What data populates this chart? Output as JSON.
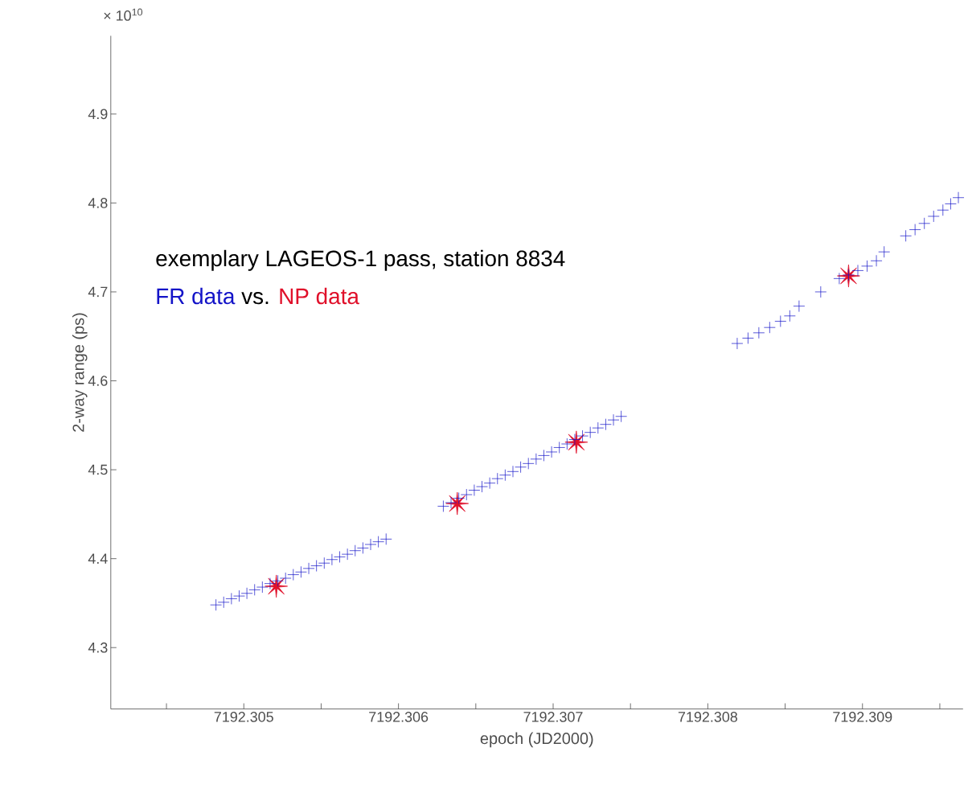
{
  "chart_data": {
    "type": "scatter",
    "title": "exemplary LAGEOS-1 pass, station 8834",
    "xlabel": "epoch (JD2000)",
    "ylabel": "2-way range (ps)",
    "annotations": [
      "× 10$^{10}$",
      "vs."
    ],
    "xlim": [
      7192.30414,
      7192.30965
    ],
    "ylim": [
      4.231,
      4.988
    ],
    "xticks": [
      {
        "value": 7192.3045,
        "label": null
      },
      7192.305,
      {
        "value": 7192.3055,
        "label": null
      },
      7192.306,
      {
        "value": 7192.3065,
        "label": null
      },
      7192.307,
      {
        "value": 7192.3075,
        "label": null
      },
      7192.308,
      {
        "value": 7192.3085,
        "label": null
      },
      7192.309,
      {
        "value": 7192.3095,
        "label": null
      }
    ],
    "yticks": [
      4.3,
      4.4,
      4.5,
      4.6,
      4.7,
      4.8,
      4.9
    ],
    "series": [
      {
        "name": "FR data",
        "color": "#1414c8",
        "marker": "cross",
        "x": [
          7192.30482,
          7192.30487,
          7192.30492,
          7192.30497,
          7192.30502,
          7192.30507,
          7192.30512,
          7192.30517,
          7192.30522,
          7192.30527,
          7192.30532,
          7192.30537,
          7192.30542,
          7192.30547,
          7192.30552,
          7192.30557,
          7192.30562,
          7192.30567,
          7192.30572,
          7192.30577,
          7192.30582,
          7192.30587,
          7192.30592,
          7192.30629,
          7192.30634,
          7192.30639,
          7192.30644,
          7192.30649,
          7192.30654,
          7192.30659,
          7192.30664,
          7192.30669,
          7192.30674,
          7192.30679,
          7192.30684,
          7192.30689,
          7192.30694,
          7192.30699,
          7192.30704,
          7192.30709,
          7192.30714,
          7192.30719,
          7192.30724,
          7192.30729,
          7192.30734,
          7192.30739,
          7192.30744,
          7192.30819,
          7192.30826,
          7192.30833,
          7192.3084,
          7192.30847,
          7192.30853,
          7192.30859,
          7192.30873,
          7192.30885,
          7192.30891,
          7192.30897,
          7192.30903,
          7192.30909,
          7192.30914,
          7192.30928,
          7192.30934,
          7192.3094,
          7192.30946,
          7192.30952,
          7192.30957,
          7192.30962
        ],
        "values": [
          4.348,
          4.351,
          4.355,
          4.358,
          4.361,
          4.365,
          4.368,
          4.372,
          4.375,
          4.378,
          4.382,
          4.385,
          4.389,
          4.392,
          4.395,
          4.399,
          4.402,
          4.405,
          4.409,
          4.412,
          4.416,
          4.419,
          4.422,
          4.459,
          4.463,
          4.468,
          4.472,
          4.477,
          4.481,
          4.485,
          4.49,
          4.494,
          4.498,
          4.503,
          4.507,
          4.512,
          4.516,
          4.52,
          4.525,
          4.529,
          4.534,
          4.538,
          4.542,
          4.547,
          4.551,
          4.556,
          4.56,
          4.642,
          4.648,
          4.654,
          4.66,
          4.667,
          4.673,
          4.684,
          4.7,
          4.715,
          4.719,
          4.724,
          4.729,
          4.735,
          4.745,
          4.763,
          4.77,
          4.777,
          4.785,
          4.792,
          4.799,
          4.806
        ]
      },
      {
        "name": "NP data",
        "color": "#e0102a",
        "marker": "star",
        "x": [
          7192.30521,
          7192.30638,
          7192.30715,
          7192.30891
        ],
        "values": [
          4.369,
          4.462,
          4.531,
          4.718
        ]
      }
    ]
  }
}
